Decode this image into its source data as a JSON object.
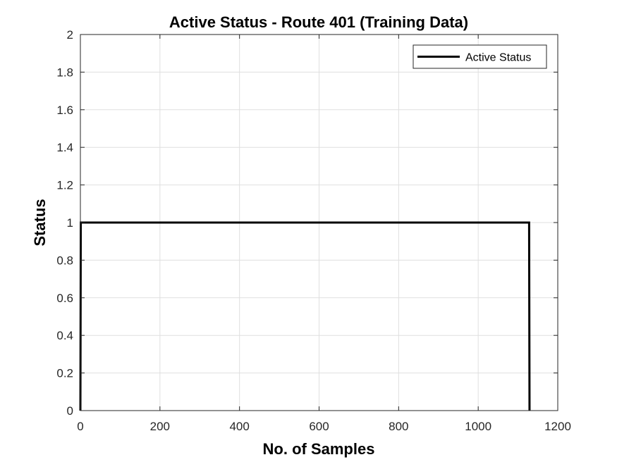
{
  "chart_data": {
    "type": "line",
    "title": "Active Status - Route 401 (Training Data)",
    "xlabel": "No. of Samples",
    "ylabel": "Status",
    "xlim": [
      0,
      1200
    ],
    "ylim": [
      0,
      2
    ],
    "xticks": [
      0,
      200,
      400,
      600,
      800,
      1000,
      1200
    ],
    "yticks": [
      0,
      0.2,
      0.4,
      0.6,
      0.8,
      1,
      1.2,
      1.4,
      1.6,
      1.8,
      2
    ],
    "xtick_labels": [
      "0",
      "200",
      "400",
      "600",
      "800",
      "1000",
      "1200"
    ],
    "ytick_labels": [
      "0",
      "0.2",
      "0.4",
      "0.6",
      "0.8",
      "1",
      "1.2",
      "1.4",
      "1.6",
      "1.8",
      "2"
    ],
    "grid": true,
    "legend_position": "top-right",
    "series": [
      {
        "name": "Active Status",
        "color": "#000000",
        "x": [
          0,
          1,
          1128,
          1129
        ],
        "y": [
          0,
          1,
          1,
          0
        ]
      }
    ]
  }
}
